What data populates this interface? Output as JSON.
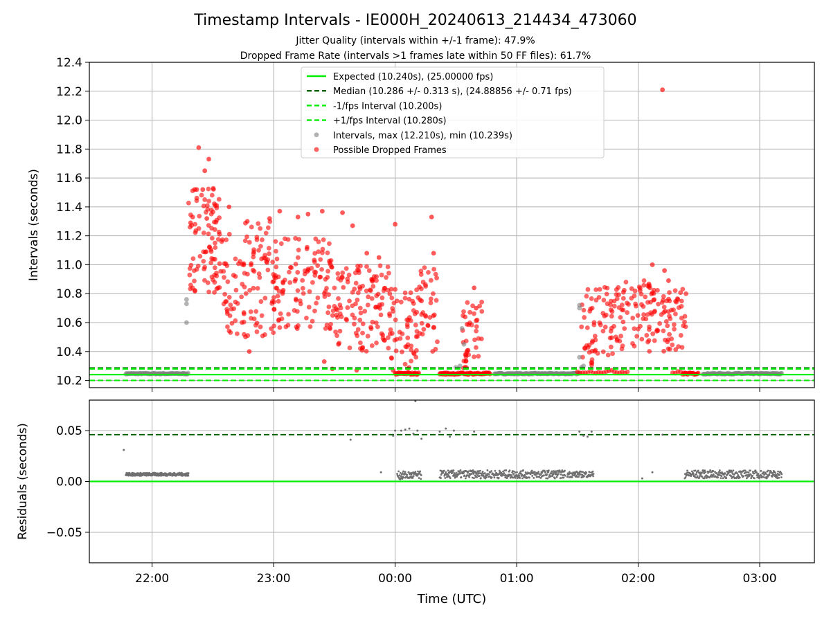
{
  "title": "Timestamp Intervals - IE000H_20240613_214434_473060",
  "subtitle_1": "Jitter Quality (intervals within +/-1 frame): 47.9%",
  "subtitle_2": "Dropped Frame Rate (intervals >1 frames late within 50 FF files): 61.7%",
  "colors": {
    "expected": "#00ee00",
    "median": "#006400",
    "interval_band": "#00ee00",
    "intervals": "#808080",
    "dropped": "#ff0000",
    "residuals": "#707070",
    "grid": "#b0b0b0"
  },
  "chart_data": [
    {
      "type": "scatter",
      "panel": "top",
      "ylabel": "Intervals (seconds)",
      "xlabel": "",
      "ylim": [
        10.15,
        12.4
      ],
      "xlim": [
        "21:29",
        "03:27"
      ],
      "y_ticks": [
        "10.2",
        "10.4",
        "10.6",
        "10.8",
        "11.0",
        "11.2",
        "11.4",
        "11.6",
        "11.8",
        "12.0",
        "12.2",
        "12.4"
      ],
      "grid": true,
      "legend_position": "top-center",
      "lines": [
        {
          "name": "Expected (10.240s), (25.00000 fps)",
          "y": 10.24,
          "style": "solid",
          "color": "#00ee00"
        },
        {
          "name": "Median (10.286 +/- 0.313 s), (24.88856 +/- 0.71 fps)",
          "y": 10.286,
          "style": "dashed",
          "color": "#006400"
        },
        {
          "name": "-1/fps Interval (10.200s)",
          "y": 10.2,
          "style": "dashed",
          "color": "#00ee00"
        },
        {
          "name": "+1/fps Interval (10.280s)",
          "y": 10.28,
          "style": "dashed",
          "color": "#00ee00"
        }
      ],
      "series": [
        {
          "name": "Intervals, max (12.210s), min (10.239s)",
          "color": "#808080",
          "baseline_runs": [
            {
              "x_start": "21:47",
              "x_end": "22:18",
              "y": 10.247
            },
            {
              "x_start": "00:49",
              "x_end": "01:31",
              "y": 10.247
            },
            {
              "x_start": "02:32",
              "x_end": "03:11",
              "y": 10.247
            }
          ],
          "points": [
            {
              "x": "22:17",
              "y": 10.6
            },
            {
              "x": "22:17",
              "y": 10.73
            },
            {
              "x": "22:17",
              "y": 10.76
            },
            {
              "x": "00:30",
              "y": 10.29
            },
            {
              "x": "00:32",
              "y": 10.3
            },
            {
              "x": "00:33",
              "y": 10.56
            },
            {
              "x": "00:34",
              "y": 10.45
            },
            {
              "x": "01:31",
              "y": 10.72
            },
            {
              "x": "01:31",
              "y": 10.7
            },
            {
              "x": "01:31",
              "y": 10.36
            },
            {
              "x": "01:32",
              "y": 10.29
            },
            {
              "x": "01:33",
              "y": 10.3
            }
          ]
        },
        {
          "name": "Possible Dropped Frames",
          "color": "#ff0000",
          "points": [
            {
              "x": "22:23",
              "y": 11.81
            },
            {
              "x": "22:26",
              "y": 11.65
            },
            {
              "x": "22:28",
              "y": 11.73
            },
            {
              "x": "22:21",
              "y": 11.52
            },
            {
              "x": "22:22",
              "y": 11.52
            },
            {
              "x": "22:25",
              "y": 11.52
            },
            {
              "x": "22:19",
              "y": 11.29
            },
            {
              "x": "22:20",
              "y": 11.33
            },
            {
              "x": "22:27",
              "y": 11.32
            },
            {
              "x": "22:38",
              "y": 11.4
            },
            {
              "x": "22:47",
              "y": 11.3
            },
            {
              "x": "22:58",
              "y": 11.32
            },
            {
              "x": "23:03",
              "y": 11.37
            },
            {
              "x": "23:12",
              "y": 11.33
            },
            {
              "x": "23:17",
              "y": 11.35
            },
            {
              "x": "23:24",
              "y": 11.37
            },
            {
              "x": "23:34",
              "y": 11.36
            },
            {
              "x": "23:39",
              "y": 11.27
            },
            {
              "x": "23:46",
              "y": 11.08
            },
            {
              "x": "23:52",
              "y": 11.05
            },
            {
              "x": "00:00",
              "y": 11.28
            },
            {
              "x": "00:18",
              "y": 11.33
            },
            {
              "x": "00:19",
              "y": 11.08
            },
            {
              "x": "00:13",
              "y": 10.75
            },
            {
              "x": "00:39",
              "y": 10.84
            },
            {
              "x": "00:40",
              "y": 10.7
            },
            {
              "x": "02:07",
              "y": 11.0
            },
            {
              "x": "02:12",
              "y": 12.21
            },
            {
              "x": "02:13",
              "y": 10.96
            },
            {
              "x": "02:15",
              "y": 10.89
            },
            {
              "x": "22:48",
              "y": 10.4
            },
            {
              "x": "23:25",
              "y": 10.33
            },
            {
              "x": "23:29",
              "y": 10.28
            },
            {
              "x": "23:32",
              "y": 10.45
            },
            {
              "x": "23:41",
              "y": 10.27
            },
            {
              "x": "23:59",
              "y": 10.27
            }
          ]
        }
      ]
    },
    {
      "type": "scatter",
      "panel": "bottom",
      "ylabel": "Residuals (seconds)",
      "xlabel": "Time (UTC)",
      "ylim": [
        -0.08,
        0.08
      ],
      "y_ticks": [
        "−0.05",
        "0.00",
        "0.05"
      ],
      "x_ticks": [
        "22:00",
        "23:00",
        "00:00",
        "01:00",
        "02:00",
        "03:00"
      ],
      "grid": true,
      "lines": [
        {
          "y": 0.0,
          "style": "solid",
          "color": "#00ee00"
        },
        {
          "y": 0.046,
          "style": "dashed",
          "color": "#006400"
        }
      ],
      "series": [
        {
          "color": "#707070",
          "bands": [
            {
              "x_start": "21:47",
              "x_end": "22:18",
              "y": 0.007,
              "spread": 0.0015
            },
            {
              "x_start": "00:01",
              "x_end": "00:13",
              "y": 0.006,
              "spread": 0.004
            },
            {
              "x_start": "00:22",
              "x_end": "01:24",
              "y": 0.007,
              "spread": 0.004
            },
            {
              "x_start": "01:25",
              "x_end": "01:38",
              "y": 0.007,
              "spread": 0.003
            },
            {
              "x_start": "02:23",
              "x_end": "03:11",
              "y": 0.007,
              "spread": 0.004
            }
          ],
          "points": [
            {
              "x": "21:46",
              "y": 0.031
            },
            {
              "x": "23:38",
              "y": 0.041
            },
            {
              "x": "23:53",
              "y": 0.009
            },
            {
              "x": "23:59",
              "y": 0.045
            },
            {
              "x": "00:00",
              "y": 0.05
            },
            {
              "x": "00:03",
              "y": 0.05
            },
            {
              "x": "00:05",
              "y": 0.051
            },
            {
              "x": "00:07",
              "y": 0.052
            },
            {
              "x": "00:09",
              "y": 0.047
            },
            {
              "x": "00:11",
              "y": 0.05
            },
            {
              "x": "00:13",
              "y": 0.042
            },
            {
              "x": "00:22",
              "y": 0.049
            },
            {
              "x": "00:25",
              "y": 0.052
            },
            {
              "x": "00:27",
              "y": 0.044
            },
            {
              "x": "00:29",
              "y": 0.05
            },
            {
              "x": "00:35",
              "y": 0.046
            },
            {
              "x": "00:39",
              "y": 0.049
            },
            {
              "x": "01:31",
              "y": 0.049
            },
            {
              "x": "01:33",
              "y": 0.045
            },
            {
              "x": "01:35",
              "y": 0.044
            },
            {
              "x": "01:37",
              "y": 0.049
            },
            {
              "x": "02:02",
              "y": 0.003
            },
            {
              "x": "02:07",
              "y": 0.009
            },
            {
              "x": "02:12",
              "y": 0.046
            },
            {
              "x": "00:10",
              "y": 0.079
            }
          ]
        }
      ]
    }
  ]
}
